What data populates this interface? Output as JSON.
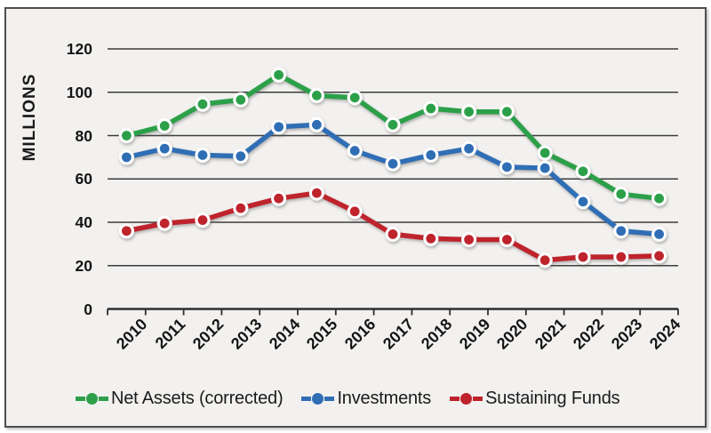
{
  "chart_data": {
    "type": "line",
    "title": "",
    "xlabel": "",
    "ylabel": "MILLIONS",
    "ylim": [
      0,
      120
    ],
    "yticks": [
      0,
      20,
      40,
      60,
      80,
      100,
      120
    ],
    "grid": true,
    "legend_position": "bottom",
    "categories": [
      "2010",
      "2011",
      "2012",
      "2013",
      "2014",
      "2015",
      "2016",
      "2017",
      "2018",
      "2019",
      "2020",
      "2021",
      "2022",
      "2023",
      "2024"
    ],
    "series": [
      {
        "name": "Net Assets (corrected)",
        "color": "#2CA049",
        "values": [
          80,
          84.5,
          94.5,
          96.5,
          108,
          98.5,
          97.5,
          85,
          92.5,
          91,
          91,
          72,
          63.5,
          53,
          51
        ]
      },
      {
        "name": "Investments",
        "color": "#2F6EB5",
        "values": [
          70,
          74,
          71,
          70.5,
          84,
          85,
          73,
          67,
          71,
          74,
          65.5,
          65,
          49.5,
          36,
          34.5
        ]
      },
      {
        "name": "Sustaining Funds",
        "color": "#BF232C",
        "values": [
          36,
          39.5,
          41,
          46.5,
          51,
          53.5,
          45,
          34.5,
          32.5,
          32,
          32,
          22.5,
          24,
          24,
          24.5
        ]
      }
    ]
  },
  "colors": {
    "background": "#F2F1EF",
    "frame_border": "#4E4E4E",
    "grid": "#3C3C3C",
    "axis": "#2E2E2E",
    "text": "#1A1A1A"
  }
}
